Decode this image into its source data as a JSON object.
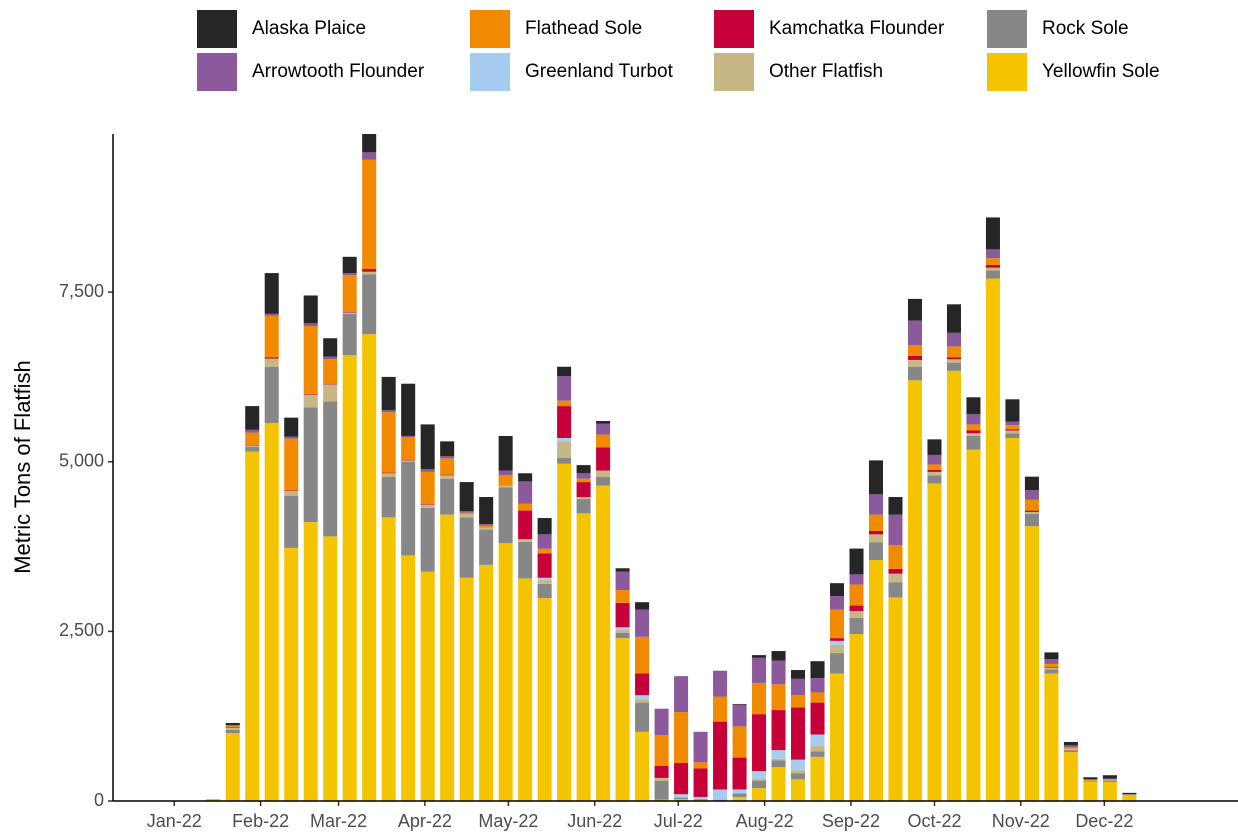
{
  "chart_data": {
    "type": "stacked_bar",
    "y_label": "Metric Tons of Flatfish",
    "x": [
      14,
      21,
      28,
      35,
      42,
      49,
      56,
      63,
      70,
      77,
      84,
      91,
      98,
      105,
      112,
      119,
      126,
      133,
      140,
      147,
      154,
      161,
      168,
      175,
      182,
      189,
      196,
      203,
      210,
      217,
      224,
      231,
      238,
      245,
      252,
      259,
      266,
      273,
      280,
      287,
      294,
      301,
      308,
      315,
      322,
      329,
      336,
      343
    ],
    "xlim": [
      -22,
      382
    ],
    "xticks": [
      {
        "value": 0,
        "label": "Jan-22"
      },
      {
        "value": 31,
        "label": "Feb-22"
      },
      {
        "value": 59,
        "label": "Mar-22"
      },
      {
        "value": 90,
        "label": "Apr-22"
      },
      {
        "value": 120,
        "label": "May-22"
      },
      {
        "value": 151,
        "label": "Jun-22"
      },
      {
        "value": 181,
        "label": "Jul-22"
      },
      {
        "value": 212,
        "label": "Aug-22"
      },
      {
        "value": 243,
        "label": "Sep-22"
      },
      {
        "value": 273,
        "label": "Oct-22"
      },
      {
        "value": 304,
        "label": "Nov-22"
      },
      {
        "value": 334,
        "label": "Dec-22"
      }
    ],
    "ylim": [
      0,
      9830
    ],
    "yticks": [
      0,
      {
        "value": 2500,
        "label": "2,500"
      },
      {
        "value": 5000,
        "label": "5,000"
      },
      {
        "value": 7500,
        "label": "7,500"
      }
    ],
    "legend": "top",
    "series": [
      {
        "name": "Alaska Plaice",
        "color": "#262626",
        "values": [
          0,
          30,
          350,
          600,
          280,
          410,
          270,
          240,
          270,
          490,
          770,
          660,
          220,
          430,
          400,
          510,
          120,
          240,
          140,
          120,
          40,
          50,
          110,
          0,
          0,
          0,
          0,
          10,
          40,
          140,
          130,
          250,
          190,
          380,
          500,
          260,
          320,
          230,
          420,
          250,
          470,
          330,
          200,
          100,
          50,
          30,
          50,
          20
        ]
      },
      {
        "name": "Arrowtooth Flounder",
        "color": "#8c5a9c",
        "values": [
          0,
          10,
          40,
          30,
          30,
          40,
          40,
          30,
          110,
          30,
          20,
          40,
          30,
          20,
          20,
          70,
          330,
          210,
          360,
          80,
          160,
          270,
          400,
          390,
          530,
          450,
          380,
          320,
          370,
          350,
          240,
          210,
          200,
          150,
          300,
          450,
          360,
          140,
          200,
          150,
          130,
          50,
          140,
          70,
          30,
          10,
          10,
          0
        ]
      },
      {
        "name": "Flathead Sole",
        "color": "#f28a00",
        "values": [
          0,
          20,
          180,
          610,
          760,
          1000,
          360,
          540,
          1610,
          890,
          330,
          470,
          240,
          20,
          30,
          150,
          100,
          70,
          80,
          50,
          190,
          190,
          540,
          450,
          750,
          90,
          370,
          460,
          460,
          380,
          180,
          150,
          420,
          310,
          240,
          350,
          160,
          80,
          160,
          90,
          100,
          60,
          160,
          50,
          20,
          10,
          10,
          0
        ]
      },
      {
        "name": "Greenland Turbot",
        "color": "#a6cdf0",
        "values": [
          0,
          0,
          0,
          0,
          0,
          0,
          0,
          0,
          0,
          0,
          0,
          0,
          0,
          0,
          0,
          0,
          0,
          30,
          50,
          0,
          0,
          40,
          60,
          0,
          50,
          30,
          150,
          60,
          110,
          130,
          160,
          170,
          60,
          0,
          0,
          0,
          0,
          0,
          0,
          0,
          0,
          0,
          0,
          0,
          0,
          0,
          0,
          0
        ]
      },
      {
        "name": "Kamchatka Flounder",
        "color": "#c8003a",
        "values": [
          0,
          10,
          10,
          20,
          10,
          10,
          10,
          10,
          40,
          10,
          10,
          10,
          10,
          0,
          0,
          0,
          420,
          360,
          470,
          220,
          340,
          360,
          320,
          180,
          460,
          420,
          1000,
          470,
          840,
          590,
          770,
          470,
          40,
          80,
          50,
          70,
          60,
          30,
          30,
          40,
          40,
          20,
          20,
          10,
          0,
          0,
          0,
          0
        ]
      },
      {
        "name": "Other Flatfish",
        "color": "#c6b784",
        "values": [
          0,
          30,
          20,
          120,
          70,
          190,
          250,
          20,
          40,
          50,
          20,
          50,
          50,
          50,
          30,
          30,
          40,
          60,
          240,
          30,
          90,
          40,
          50,
          40,
          0,
          0,
          0,
          0,
          30,
          20,
          40,
          80,
          120,
          100,
          120,
          130,
          100,
          50,
          50,
          40,
          40,
          40,
          30,
          20,
          20,
          10,
          10,
          0
        ]
      },
      {
        "name": "Rock Sole",
        "color": "#878787",
        "values": [
          0,
          50,
          70,
          830,
          770,
          1690,
          1990,
          610,
          880,
          600,
          1380,
          940,
          530,
          890,
          520,
          820,
          540,
          210,
          90,
          210,
          130,
          80,
          430,
          280,
          20,
          10,
          10,
          50,
          110,
          100,
          90,
          80,
          300,
          240,
          260,
          220,
          200,
          120,
          120,
          200,
          120,
          70,
          180,
          60,
          30,
          10,
          20,
          10
        ]
      },
      {
        "name": "Yellowfin Sole",
        "color": "#f5c400",
        "values": [
          30,
          1000,
          5150,
          5570,
          3730,
          4110,
          3900,
          6570,
          6880,
          4180,
          3620,
          3380,
          4220,
          3290,
          3480,
          3800,
          3280,
          2990,
          4970,
          4240,
          4650,
          2400,
          1020,
          20,
          30,
          20,
          10,
          60,
          190,
          500,
          320,
          650,
          1880,
          2460,
          3550,
          3000,
          6200,
          4680,
          6340,
          5180,
          7700,
          5350,
          4050,
          1880,
          720,
          280,
          280,
          90
        ]
      }
    ]
  }
}
